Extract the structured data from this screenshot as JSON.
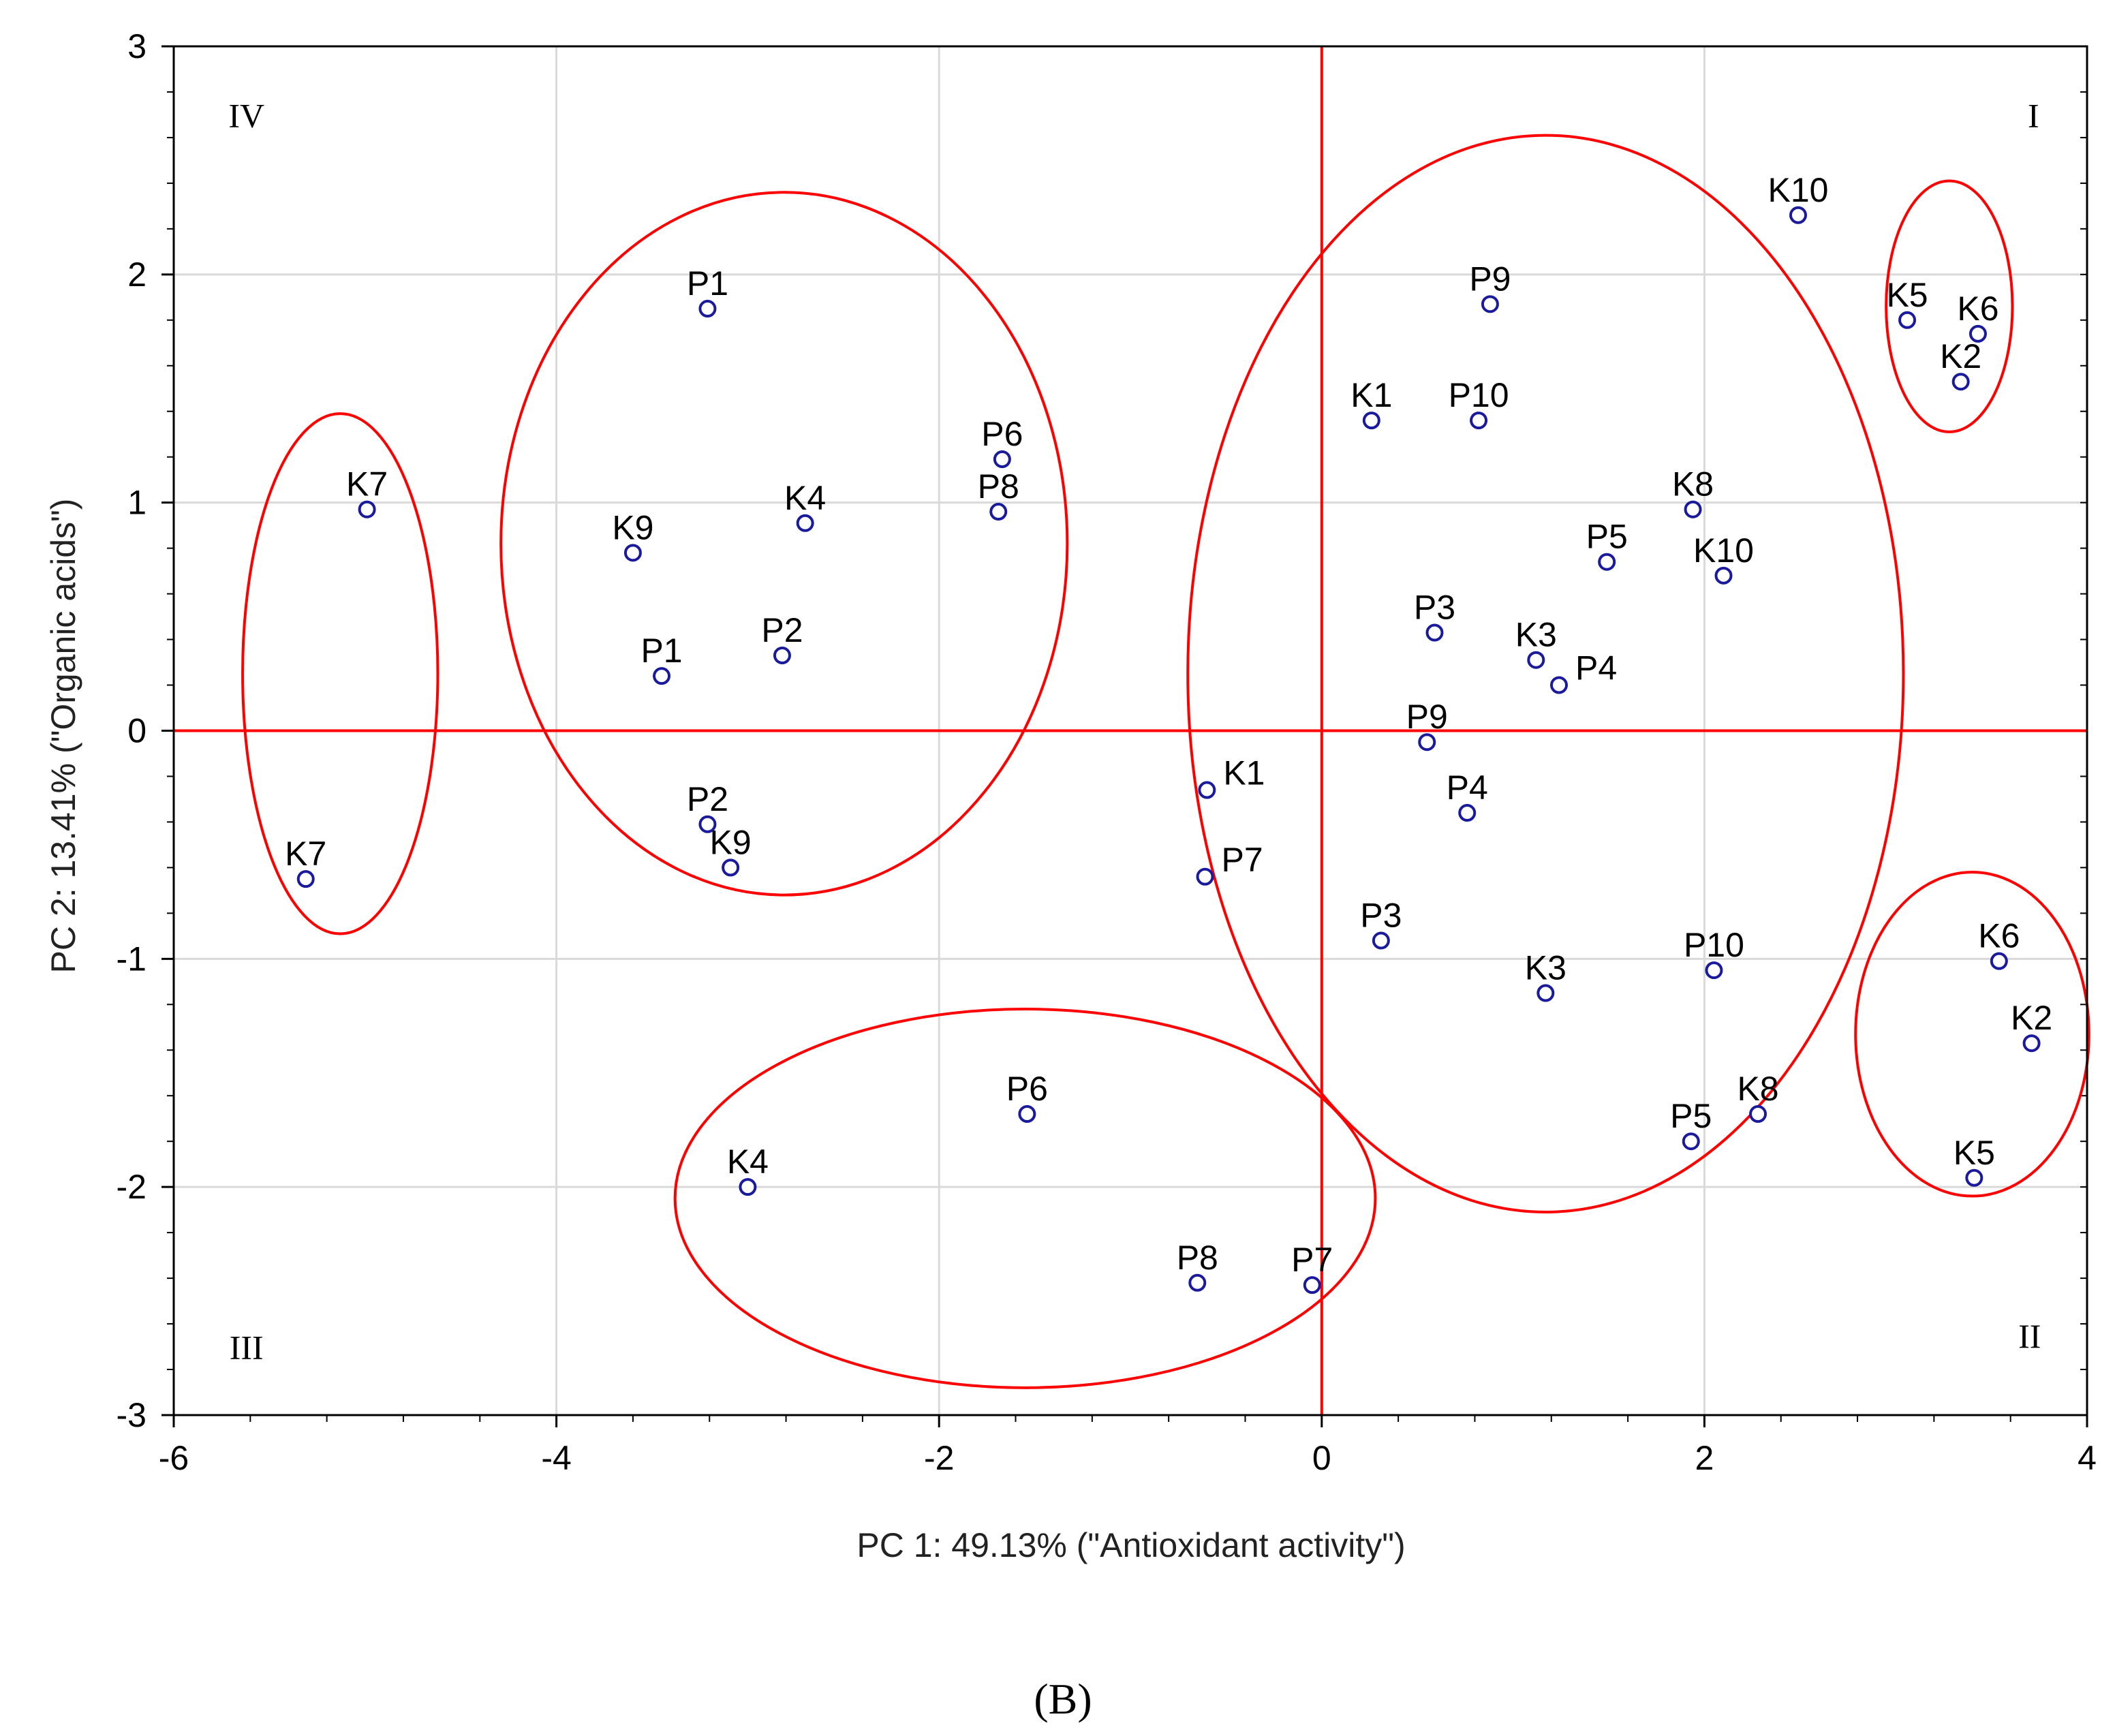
{
  "chart_data": {
    "type": "scatter",
    "title": "",
    "xlabel": "PC 1: 49.13% (\"Antioxidant activity\")",
    "ylabel": "PC 2: 13.41% (\"Organic acids\")",
    "xlim": [
      -6,
      4
    ],
    "ylim": [
      -3,
      3
    ],
    "xticks": [
      -6,
      -4,
      -2,
      0,
      2,
      4
    ],
    "yticks": [
      -3,
      -2,
      -1,
      0,
      1,
      2,
      3
    ],
    "xtick_labels": [
      "-6",
      "-4",
      "-2",
      "0",
      "2",
      "4"
    ],
    "ytick_labels": [
      "-3",
      "-2",
      "-1",
      "0",
      "1",
      "2",
      "3"
    ],
    "grid": true,
    "reference_lines": {
      "x": 0,
      "y": 0,
      "color": "#ff0000"
    },
    "marker_color": "#1a1a9c",
    "line_color": "#ff0000",
    "points": [
      {
        "label": "K10",
        "x": 2.49,
        "y": 2.26
      },
      {
        "label": "P9",
        "x": 0.88,
        "y": 1.87
      },
      {
        "label": "K5",
        "x": 3.06,
        "y": 1.8
      },
      {
        "label": "K6",
        "x": 3.43,
        "y": 1.74
      },
      {
        "label": "K2",
        "x": 3.34,
        "y": 1.53
      },
      {
        "label": "K1",
        "x": 0.26,
        "y": 1.36
      },
      {
        "label": "P10",
        "x": 0.82,
        "y": 1.36
      },
      {
        "label": "K8",
        "x": 1.94,
        "y": 0.97
      },
      {
        "label": "P5",
        "x": 1.49,
        "y": 0.74
      },
      {
        "label": "K10",
        "x": 2.1,
        "y": 0.68
      },
      {
        "label": "P3",
        "x": 0.59,
        "y": 0.43
      },
      {
        "label": "K3",
        "x": 1.12,
        "y": 0.31
      },
      {
        "label": "P4",
        "x": 1.24,
        "y": 0.2
      },
      {
        "label": "P9",
        "x": 0.55,
        "y": -0.05
      },
      {
        "label": "P4",
        "x": 0.76,
        "y": -0.36
      },
      {
        "label": "P3",
        "x": 0.31,
        "y": -0.92
      },
      {
        "label": "K3",
        "x": 1.17,
        "y": -1.15
      },
      {
        "label": "P10",
        "x": 2.05,
        "y": -1.05
      },
      {
        "label": "K6",
        "x": 3.54,
        "y": -1.01
      },
      {
        "label": "K2",
        "x": 3.71,
        "y": -1.37
      },
      {
        "label": "K8",
        "x": 2.28,
        "y": -1.68
      },
      {
        "label": "P5",
        "x": 1.93,
        "y": -1.8
      },
      {
        "label": "K5",
        "x": 3.41,
        "y": -1.96
      },
      {
        "label": "K1",
        "x": -0.6,
        "y": -0.26
      },
      {
        "label": "P7",
        "x": -0.61,
        "y": -0.64
      },
      {
        "label": "P1",
        "x": -3.21,
        "y": 1.85
      },
      {
        "label": "P6",
        "x": -1.67,
        "y": 1.19
      },
      {
        "label": "K4",
        "x": -2.7,
        "y": 0.91
      },
      {
        "label": "P8",
        "x": -1.69,
        "y": 0.96
      },
      {
        "label": "K9",
        "x": -3.6,
        "y": 0.78
      },
      {
        "label": "P1",
        "x": -3.45,
        "y": 0.24
      },
      {
        "label": "P2",
        "x": -2.82,
        "y": 0.33
      },
      {
        "label": "P2",
        "x": -3.21,
        "y": -0.41
      },
      {
        "label": "K9",
        "x": -3.09,
        "y": -0.6
      },
      {
        "label": "K7",
        "x": -4.99,
        "y": 0.97
      },
      {
        "label": "K7",
        "x": -5.31,
        "y": -0.65
      },
      {
        "label": "P6",
        "x": -1.54,
        "y": -1.68
      },
      {
        "label": "K4",
        "x": -3.0,
        "y": -2.0
      },
      {
        "label": "P8",
        "x": -0.65,
        "y": -2.42
      },
      {
        "label": "P7",
        "x": -0.05,
        "y": -2.43
      }
    ],
    "ellipses": [
      {
        "cx": -5.13,
        "cy": 0.25,
        "rx": 0.51,
        "ry": 1.14
      },
      {
        "cx": -2.81,
        "cy": 0.82,
        "rx": 1.48,
        "ry": 1.54
      },
      {
        "cx": 1.17,
        "cy": 0.25,
        "rx": 1.87,
        "ry": 2.36
      },
      {
        "cx": 3.28,
        "cy": 1.86,
        "rx": 0.33,
        "ry": 0.55
      },
      {
        "cx": 3.4,
        "cy": -1.33,
        "rx": 0.61,
        "ry": 0.71
      },
      {
        "cx": -1.55,
        "cy": -2.05,
        "rx": 1.83,
        "ry": 0.83
      }
    ],
    "quadrant_labels": [
      {
        "text": "I",
        "x": 3.72,
        "y": 2.7
      },
      {
        "text": "II",
        "x": 3.7,
        "y": -2.65
      },
      {
        "text": "III",
        "x": -5.62,
        "y": -2.7
      },
      {
        "text": "IV",
        "x": -5.62,
        "y": 2.7
      }
    ],
    "panel_label": "(B)"
  }
}
